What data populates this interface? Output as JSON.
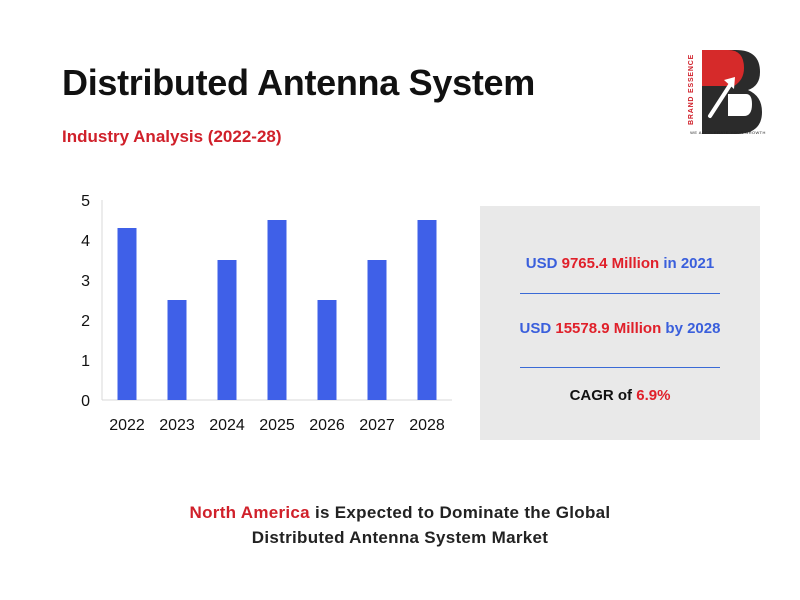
{
  "header": {
    "title": "Distributed Antenna System",
    "subtitle": "Industry Analysis (2022-28)"
  },
  "logo": {
    "brand": "BRAND ESSENCE",
    "tagline": "WE ACCELERATE YOUR GROWTH",
    "icon": "brand-essence-logo-icon",
    "colors": {
      "red": "#d62a2a",
      "dark": "#2b2b2b"
    }
  },
  "stats": {
    "line1": {
      "prefix": "USD ",
      "value": "9765.4 Million",
      "suffix": " in 2021"
    },
    "line2": {
      "prefix": "USD ",
      "value": "15578.9 Million",
      "suffix": " by 2028"
    },
    "line3": {
      "prefix": "CAGR of ",
      "value": "6.9%"
    }
  },
  "footer": {
    "highlight": "North America",
    "line1_rest": " is Expected to Dominate the Global",
    "line2": "Distributed Antenna System Market"
  },
  "colors": {
    "bar": "#3f60e8",
    "accent_red": "#d0202a",
    "accent_blue": "#3a5fdc",
    "panel_bg": "#e9e9e9"
  },
  "chart_data": {
    "type": "bar",
    "categories": [
      "2022",
      "2023",
      "2024",
      "2025",
      "2026",
      "2027",
      "2028"
    ],
    "values": [
      4.3,
      2.5,
      3.5,
      4.5,
      2.5,
      3.5,
      4.5
    ],
    "yticks": [
      "0",
      "1",
      "2",
      "3",
      "4",
      "5"
    ],
    "ylim": [
      0,
      5
    ],
    "title": "",
    "xlabel": "",
    "ylabel": "",
    "grid": false,
    "legend": "none"
  }
}
